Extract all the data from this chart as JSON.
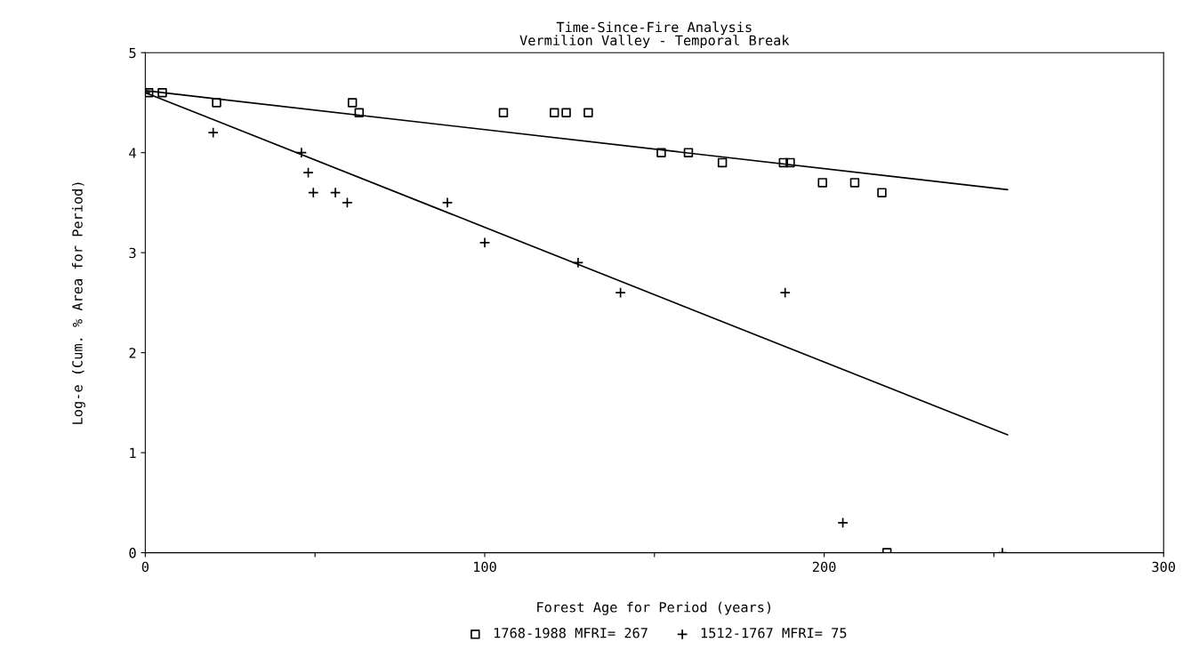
{
  "chart_data": {
    "type": "scatter",
    "title": "Time-Since-Fire Analysis\nVermilion Valley - Temporal Break",
    "xlabel": "Forest Age for Period (years)",
    "ylabel": "Log-e (Cum. % Area for Period)",
    "xlim": [
      0,
      300
    ],
    "ylim": [
      0,
      5
    ],
    "xticks": [
      0,
      {
        "value": 50,
        "label": null
      },
      100,
      {
        "value": 150,
        "label": null
      },
      200,
      {
        "value": 250,
        "label": null
      },
      300
    ],
    "yticks": [
      0,
      1,
      2,
      3,
      4,
      5
    ],
    "grid": false,
    "legend": "bottom",
    "series": [
      {
        "name": "1768-1988 MFRI= 267",
        "marker": "square",
        "color": "#000000",
        "x": [
          1,
          5,
          21,
          61,
          63,
          105.5,
          120.5,
          124,
          130.5,
          152,
          160,
          170,
          188,
          190,
          199.5,
          209,
          217,
          218.5
        ],
        "values": [
          4.6,
          4.6,
          4.5,
          4.5,
          4.4,
          4.4,
          4.4,
          4.4,
          4.4,
          4.0,
          4.0,
          3.9,
          3.9,
          3.9,
          3.7,
          3.7,
          3.6,
          0
        ]
      },
      {
        "name": "1512-1767 MFRI= 75",
        "marker": "cross",
        "color": "#000000",
        "x": [
          0,
          20,
          46,
          48,
          49.5,
          56,
          59.5,
          89,
          100,
          127.5,
          140,
          188.5,
          205.5,
          252.5
        ],
        "values": [
          4.6,
          4.2,
          4.0,
          3.8,
          3.6,
          3.6,
          3.5,
          3.5,
          3.1,
          2.9,
          2.6,
          2.6,
          0.3,
          0
        ]
      },
      {
        "type": "line",
        "color": "#000000",
        "x": [
          0,
          254
        ],
        "values": [
          4.62,
          3.63
        ]
      },
      {
        "type": "line",
        "color": "#000000",
        "x": [
          0,
          254
        ],
        "values": [
          4.6,
          1.18
        ]
      }
    ]
  }
}
